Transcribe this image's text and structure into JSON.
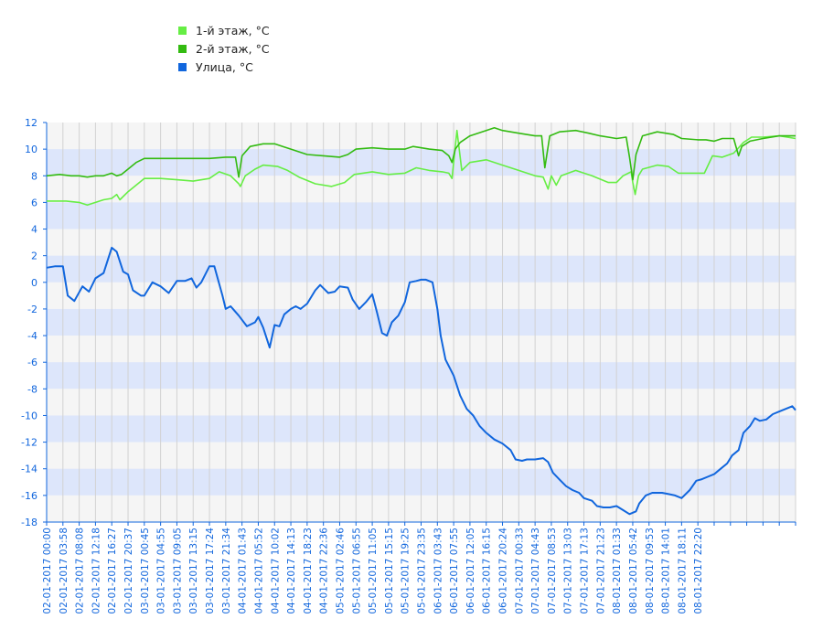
{
  "chart_data": {
    "type": "line",
    "legend_position": "top-left",
    "grid": true,
    "ylim": [
      -18,
      12
    ],
    "yticks": [
      12,
      10,
      8,
      6,
      4,
      2,
      0,
      -2,
      -4,
      -6,
      -8,
      -10,
      -12,
      -14,
      -16,
      -18
    ],
    "xticks": [
      "02-01-2017 00:00",
      "02-01-2017 03:58",
      "02-01-2017 08:08",
      "02-01-2017 12:18",
      "02-01-2017 16:27",
      "02-01-2017 20:37",
      "03-01-2017 00:45",
      "03-01-2017 04:55",
      "03-01-2017 09:05",
      "03-01-2017 13:15",
      "03-01-2017 17:24",
      "03-01-2017 21:34",
      "04-01-2017 01:43",
      "04-01-2017 05:52",
      "04-01-2017 10:02",
      "04-01-2017 14:13",
      "04-01-2017 18:23",
      "04-01-2017 22:36",
      "05-01-2017 02:46",
      "05-01-2017 06:55",
      "05-01-2017 11:05",
      "05-01-2017 15:15",
      "05-01-2017 19:25",
      "05-01-2017 23:35",
      "06-01-2017 03:43",
      "06-01-2017 07:55",
      "06-01-2017 12:05",
      "06-01-2017 16:15",
      "06-01-2017 20:24",
      "07-01-2017 00:33",
      "07-01-2017 04:43",
      "07-01-2017 08:53",
      "07-01-2017 13:03",
      "07-01-2017 17:13",
      "07-01-2017 21:23",
      "08-01-2017 01:33",
      "08-01-2017 05:42",
      "08-01-2017 09:53",
      "08-01-2017 14:01",
      "08-01-2017 18:11",
      "08-01-2017 22:20"
    ],
    "series": [
      {
        "name": "1-й этаж, °C",
        "color": "#66ee44",
        "points": [
          [
            0,
            6.1
          ],
          [
            1.2,
            6.1
          ],
          [
            2,
            6
          ],
          [
            2.5,
            5.8
          ],
          [
            3,
            6
          ],
          [
            3.5,
            6.2
          ],
          [
            4,
            6.3
          ],
          [
            4.3,
            6.6
          ],
          [
            4.5,
            6.2
          ],
          [
            5,
            6.8
          ],
          [
            5.5,
            7.3
          ],
          [
            6,
            7.8
          ],
          [
            7,
            7.8
          ],
          [
            8,
            7.7
          ],
          [
            9,
            7.6
          ],
          [
            10,
            7.8
          ],
          [
            10.6,
            8.3
          ],
          [
            11.3,
            8
          ],
          [
            11.8,
            7.4
          ],
          [
            11.9,
            7.2
          ],
          [
            12.2,
            8
          ],
          [
            12.8,
            8.5
          ],
          [
            13.3,
            8.8
          ],
          [
            14.2,
            8.7
          ],
          [
            14.8,
            8.4
          ],
          [
            15.5,
            7.9
          ],
          [
            16.5,
            7.4
          ],
          [
            17.5,
            7.2
          ],
          [
            18.3,
            7.5
          ],
          [
            18.9,
            8.1
          ],
          [
            20,
            8.3
          ],
          [
            21,
            8.1
          ],
          [
            22,
            8.2
          ],
          [
            22.7,
            8.6
          ],
          [
            23.5,
            8.4
          ],
          [
            24.3,
            8.3
          ],
          [
            24.7,
            8.2
          ],
          [
            24.9,
            7.8
          ],
          [
            25.2,
            11.4
          ],
          [
            25.5,
            8.4
          ],
          [
            26,
            9
          ],
          [
            27,
            9.2
          ],
          [
            28,
            8.8
          ],
          [
            29,
            8.4
          ],
          [
            30,
            8
          ],
          [
            30.5,
            7.9
          ],
          [
            30.8,
            7
          ],
          [
            31,
            8
          ],
          [
            31.3,
            7.3
          ],
          [
            31.6,
            8
          ],
          [
            32.5,
            8.4
          ],
          [
            33.5,
            8
          ],
          [
            34.5,
            7.5
          ],
          [
            35,
            7.5
          ],
          [
            35.4,
            8
          ],
          [
            35.9,
            8.3
          ],
          [
            36,
            7.5
          ],
          [
            36.15,
            6.6
          ],
          [
            36.35,
            8
          ],
          [
            36.6,
            8.5
          ],
          [
            37.5,
            8.8
          ],
          [
            38.2,
            8.7
          ],
          [
            38.8,
            8.2
          ],
          [
            39.5,
            8.2
          ],
          [
            40,
            8.2
          ],
          [
            40.4,
            8.2
          ],
          [
            40.9,
            9.5
          ],
          [
            41.5,
            9.4
          ],
          [
            42.2,
            9.7
          ],
          [
            42.8,
            10.5
          ],
          [
            43.3,
            10.9
          ],
          [
            44,
            10.9
          ],
          [
            45,
            11
          ],
          [
            46,
            10.8
          ]
        ]
      },
      {
        "name": "2-й этаж, °C",
        "color": "#33bb11",
        "points": [
          [
            0,
            8
          ],
          [
            0.8,
            8.1
          ],
          [
            1.5,
            8
          ],
          [
            2,
            8
          ],
          [
            2.5,
            7.9
          ],
          [
            3,
            8
          ],
          [
            3.5,
            8
          ],
          [
            4,
            8.2
          ],
          [
            4.3,
            8
          ],
          [
            4.6,
            8.1
          ],
          [
            5,
            8.5
          ],
          [
            5.5,
            9
          ],
          [
            6,
            9.3
          ],
          [
            7,
            9.3
          ],
          [
            8,
            9.3
          ],
          [
            9,
            9.3
          ],
          [
            10,
            9.3
          ],
          [
            11,
            9.4
          ],
          [
            11.6,
            9.4
          ],
          [
            11.8,
            7.9
          ],
          [
            12,
            9.5
          ],
          [
            12.5,
            10.2
          ],
          [
            13.3,
            10.4
          ],
          [
            14,
            10.4
          ],
          [
            14.5,
            10.2
          ],
          [
            15,
            10
          ],
          [
            16,
            9.6
          ],
          [
            17,
            9.5
          ],
          [
            18,
            9.4
          ],
          [
            18.5,
            9.6
          ],
          [
            19,
            10
          ],
          [
            20,
            10.1
          ],
          [
            21,
            10
          ],
          [
            22,
            10
          ],
          [
            22.5,
            10.2
          ],
          [
            23.5,
            10
          ],
          [
            24.3,
            9.9
          ],
          [
            24.7,
            9.5
          ],
          [
            24.9,
            9
          ],
          [
            25.1,
            10
          ],
          [
            25.4,
            10.5
          ],
          [
            26,
            11
          ],
          [
            27,
            11.4
          ],
          [
            27.5,
            11.6
          ],
          [
            28,
            11.4
          ],
          [
            29,
            11.2
          ],
          [
            30,
            11
          ],
          [
            30.4,
            11
          ],
          [
            30.6,
            8.6
          ],
          [
            30.9,
            11
          ],
          [
            31.5,
            11.3
          ],
          [
            32.5,
            11.4
          ],
          [
            33.3,
            11.2
          ],
          [
            34,
            11
          ],
          [
            35,
            10.8
          ],
          [
            35.6,
            10.9
          ],
          [
            35.8,
            9.4
          ],
          [
            36,
            7.7
          ],
          [
            36.2,
            9.6
          ],
          [
            36.6,
            11
          ],
          [
            37.5,
            11.3
          ],
          [
            38.5,
            11.1
          ],
          [
            39,
            10.8
          ],
          [
            40,
            10.7
          ],
          [
            40.5,
            10.7
          ],
          [
            41,
            10.6
          ],
          [
            41.5,
            10.8
          ],
          [
            42.2,
            10.8
          ],
          [
            42.5,
            9.5
          ],
          [
            42.7,
            10.2
          ],
          [
            43.2,
            10.6
          ],
          [
            44,
            10.8
          ],
          [
            45,
            11
          ],
          [
            46,
            11
          ]
        ]
      },
      {
        "name": "Улица, °C",
        "color": "#1166dd",
        "points": [
          [
            0,
            1.1
          ],
          [
            0.5,
            1.2
          ],
          [
            1,
            1.2
          ],
          [
            1.3,
            -1
          ],
          [
            1.7,
            -1.4
          ],
          [
            2.2,
            -0.3
          ],
          [
            2.6,
            -0.7
          ],
          [
            3,
            0.3
          ],
          [
            3.5,
            0.7
          ],
          [
            4,
            2.6
          ],
          [
            4.3,
            2.3
          ],
          [
            4.7,
            0.8
          ],
          [
            5,
            0.6
          ],
          [
            5.3,
            -0.6
          ],
          [
            5.8,
            -1
          ],
          [
            6,
            -1
          ],
          [
            6.5,
            0
          ],
          [
            7,
            -0.3
          ],
          [
            7.5,
            -0.8
          ],
          [
            8,
            0.1
          ],
          [
            8.5,
            0.1
          ],
          [
            8.9,
            0.3
          ],
          [
            9.2,
            -0.4
          ],
          [
            9.5,
            0
          ],
          [
            10,
            1.2
          ],
          [
            10.3,
            1.2
          ],
          [
            10.8,
            -1
          ],
          [
            11,
            -2
          ],
          [
            11.3,
            -1.8
          ],
          [
            11.8,
            -2.5
          ],
          [
            12.3,
            -3.3
          ],
          [
            12.8,
            -3
          ],
          [
            13,
            -2.6
          ],
          [
            13.3,
            -3.4
          ],
          [
            13.7,
            -4.9
          ],
          [
            14,
            -3.2
          ],
          [
            14.3,
            -3.3
          ],
          [
            14.6,
            -2.4
          ],
          [
            15,
            -2
          ],
          [
            15.3,
            -1.8
          ],
          [
            15.6,
            -2
          ],
          [
            16,
            -1.6
          ],
          [
            16.5,
            -0.6
          ],
          [
            16.8,
            -0.2
          ],
          [
            17.3,
            -0.8
          ],
          [
            17.7,
            -0.7
          ],
          [
            18,
            -0.3
          ],
          [
            18.5,
            -0.4
          ],
          [
            18.8,
            -1.3
          ],
          [
            19.2,
            -2
          ],
          [
            19.6,
            -1.5
          ],
          [
            20,
            -0.9
          ],
          [
            20.3,
            -2.3
          ],
          [
            20.6,
            -3.8
          ],
          [
            20.9,
            -4
          ],
          [
            21.2,
            -3
          ],
          [
            21.6,
            -2.5
          ],
          [
            22,
            -1.5
          ],
          [
            22.3,
            0
          ],
          [
            22.7,
            0.1
          ],
          [
            23,
            0.2
          ],
          [
            23.3,
            0.2
          ],
          [
            23.7,
            0
          ],
          [
            24,
            -2
          ],
          [
            24.2,
            -4
          ],
          [
            24.5,
            -5.8
          ],
          [
            25,
            -7
          ],
          [
            25.4,
            -8.5
          ],
          [
            25.8,
            -9.5
          ],
          [
            26.2,
            -10
          ],
          [
            26.6,
            -10.8
          ],
          [
            27,
            -11.3
          ],
          [
            27.5,
            -11.8
          ],
          [
            28,
            -12.1
          ],
          [
            28.5,
            -12.6
          ],
          [
            28.8,
            -13.3
          ],
          [
            29.2,
            -13.4
          ],
          [
            29.5,
            -13.3
          ],
          [
            30,
            -13.3
          ],
          [
            30.5,
            -13.2
          ],
          [
            30.8,
            -13.5
          ],
          [
            31.1,
            -14.3
          ],
          [
            31.5,
            -14.8
          ],
          [
            31.9,
            -15.3
          ],
          [
            32.3,
            -15.6
          ],
          [
            32.7,
            -15.8
          ],
          [
            33,
            -16.2
          ],
          [
            33.5,
            -16.4
          ],
          [
            33.8,
            -16.8
          ],
          [
            34.2,
            -16.9
          ],
          [
            34.6,
            -16.9
          ],
          [
            35,
            -16.8
          ],
          [
            35.4,
            -17.1
          ],
          [
            35.8,
            -17.4
          ],
          [
            36.2,
            -17.2
          ],
          [
            36.4,
            -16.6
          ],
          [
            36.8,
            -16
          ],
          [
            37.2,
            -15.8
          ],
          [
            37.8,
            -15.8
          ],
          [
            38.2,
            -15.9
          ],
          [
            38.6,
            -16
          ],
          [
            39,
            -16.2
          ],
          [
            39.5,
            -15.6
          ],
          [
            39.9,
            -14.9
          ],
          [
            40.2,
            -14.8
          ],
          [
            40.6,
            -14.6
          ],
          [
            41,
            -14.4
          ],
          [
            41.4,
            -14
          ],
          [
            41.8,
            -13.6
          ],
          [
            42.1,
            -13
          ],
          [
            42.5,
            -12.6
          ],
          [
            42.8,
            -11.3
          ],
          [
            43.2,
            -10.8
          ],
          [
            43.5,
            -10.2
          ],
          [
            43.8,
            -10.4
          ],
          [
            44.2,
            -10.3
          ],
          [
            44.6,
            -9.9
          ],
          [
            45,
            -9.7
          ],
          [
            45.4,
            -9.5
          ],
          [
            45.8,
            -9.3
          ],
          [
            46,
            -9.6
          ]
        ]
      }
    ]
  }
}
